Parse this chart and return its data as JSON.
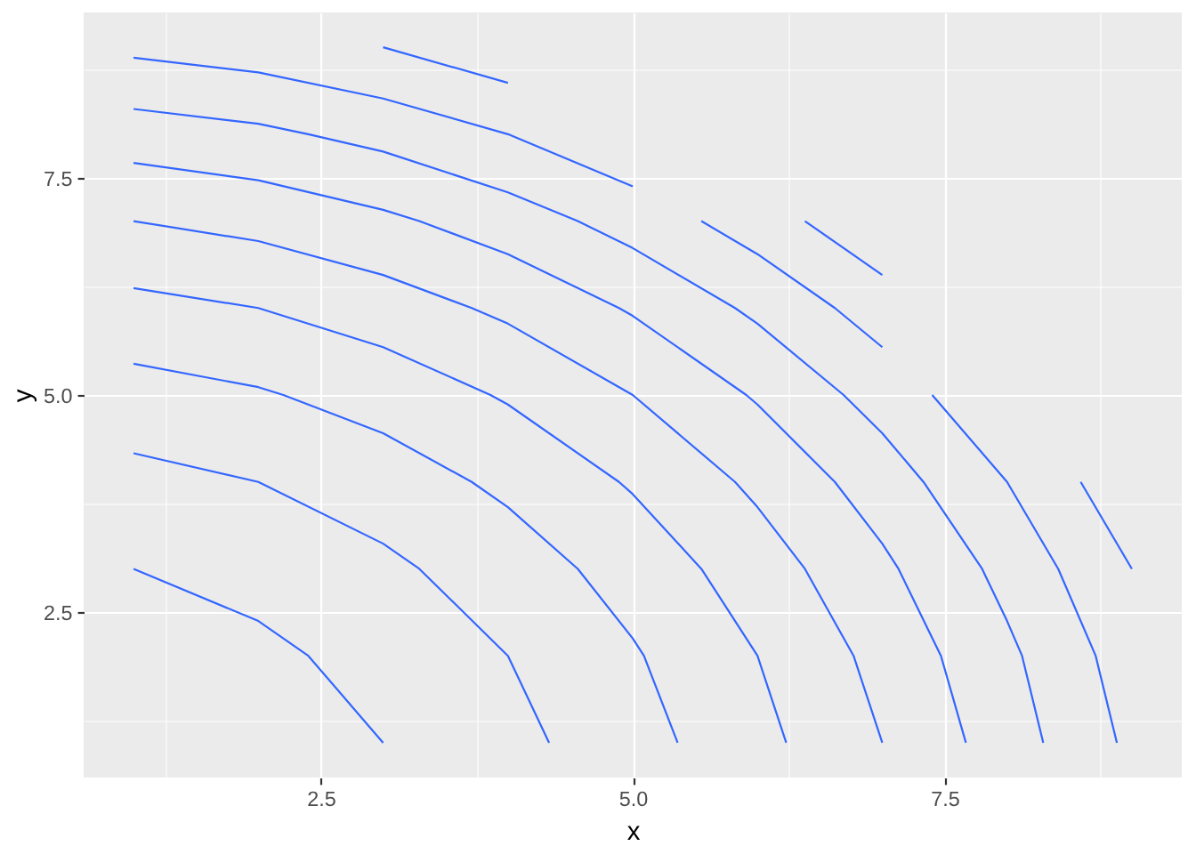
{
  "chart_data": {
    "type": "line",
    "xlabel": "x",
    "ylabel": "y",
    "xlim": [
      0.6,
      9.4
    ],
    "ylim": [
      0.6,
      9.4
    ],
    "xticks": [
      {
        "value": 1.25,
        "label": null
      },
      2.5,
      {
        "value": 3.75,
        "label": null
      },
      {
        "value": 5,
        "label": "5.0"
      },
      {
        "value": 6.25,
        "label": null
      },
      7.5,
      {
        "value": 8.75,
        "label": null
      }
    ],
    "yticks": [
      {
        "value": 1.25,
        "label": null
      },
      2.5,
      {
        "value": 3.75,
        "label": null
      },
      {
        "value": 5,
        "label": "5.0"
      },
      {
        "value": 6.25,
        "label": null
      },
      7.5,
      {
        "value": 8.75,
        "label": null
      }
    ],
    "grid": true,
    "line_style": "solid",
    "series": [
      {
        "color": "#3366ff",
        "x": [
          1,
          2,
          2.4,
          3
        ],
        "values": [
          3,
          2.4,
          2,
          1
        ]
      },
      {
        "color": "#3366ff",
        "x": [
          1,
          2,
          3,
          3.29,
          4,
          4.33
        ],
        "values": [
          4.33,
          4,
          3.29,
          3,
          2,
          1
        ]
      },
      {
        "color": "#3366ff",
        "x": [
          1,
          2,
          2.2,
          3,
          3.71,
          4,
          4.56,
          5,
          5.09,
          5.36
        ],
        "values": [
          5.36,
          5.09,
          5,
          4.56,
          4,
          3.71,
          3,
          2.2,
          2,
          1
        ]
      },
      {
        "color": "#3366ff",
        "x": [
          1,
          2,
          3,
          3.86,
          4,
          4.89,
          5,
          5.55,
          6,
          6.23
        ],
        "values": [
          6.23,
          6,
          5.55,
          5,
          4.89,
          4,
          3.86,
          3,
          2,
          1
        ]
      },
      {
        "color": "#3366ff",
        "x": [
          1,
          2,
          3,
          3.71,
          4,
          5,
          5.82,
          6,
          6.38,
          6.77,
          7
        ],
        "values": [
          7,
          6.77,
          6.38,
          6,
          5.82,
          5,
          4,
          3.71,
          3,
          2,
          1
        ]
      },
      {
        "color": "#3366ff",
        "x": [
          1,
          2,
          3,
          3.29,
          4,
          4.89,
          5,
          5.91,
          6,
          6.62,
          7,
          7.13,
          7.47,
          7.67
        ],
        "values": [
          7.67,
          7.47,
          7.13,
          7,
          6.62,
          6,
          5.91,
          5,
          4.89,
          4,
          3.29,
          3,
          2,
          1
        ]
      },
      {
        "color": "#3366ff",
        "x": [
          1,
          2,
          2.4,
          3,
          4,
          4.56,
          5,
          5.82,
          6,
          6.69,
          7,
          7.33,
          7.8,
          8,
          8.12,
          8.29
        ],
        "values": [
          8.29,
          8.12,
          8,
          7.8,
          7.33,
          7,
          6.69,
          6,
          5.82,
          5,
          4.56,
          4,
          3,
          2.4,
          2,
          1
        ]
      },
      {
        "color": "#3366ff",
        "x": [
          1,
          2,
          3,
          4,
          5
        ],
        "values": [
          8.88,
          8.71,
          8.41,
          8,
          7.4
        ]
      },
      {
        "color": "#3366ff",
        "x": [
          5.55,
          6,
          6.62,
          7
        ],
        "values": [
          7,
          6.62,
          6,
          5.55
        ]
      },
      {
        "color": "#3366ff",
        "x": [
          7.4,
          8,
          8.41,
          8.71,
          8.88
        ],
        "values": [
          5,
          4,
          3,
          2,
          1
        ]
      },
      {
        "color": "#3366ff",
        "x": [
          3,
          4
        ],
        "values": [
          9,
          8.59
        ]
      },
      {
        "color": "#3366ff",
        "x": [
          6.38,
          7
        ],
        "values": [
          7,
          6.38
        ]
      },
      {
        "color": "#3366ff",
        "x": [
          8.59,
          9
        ],
        "values": [
          4,
          3
        ]
      }
    ]
  }
}
